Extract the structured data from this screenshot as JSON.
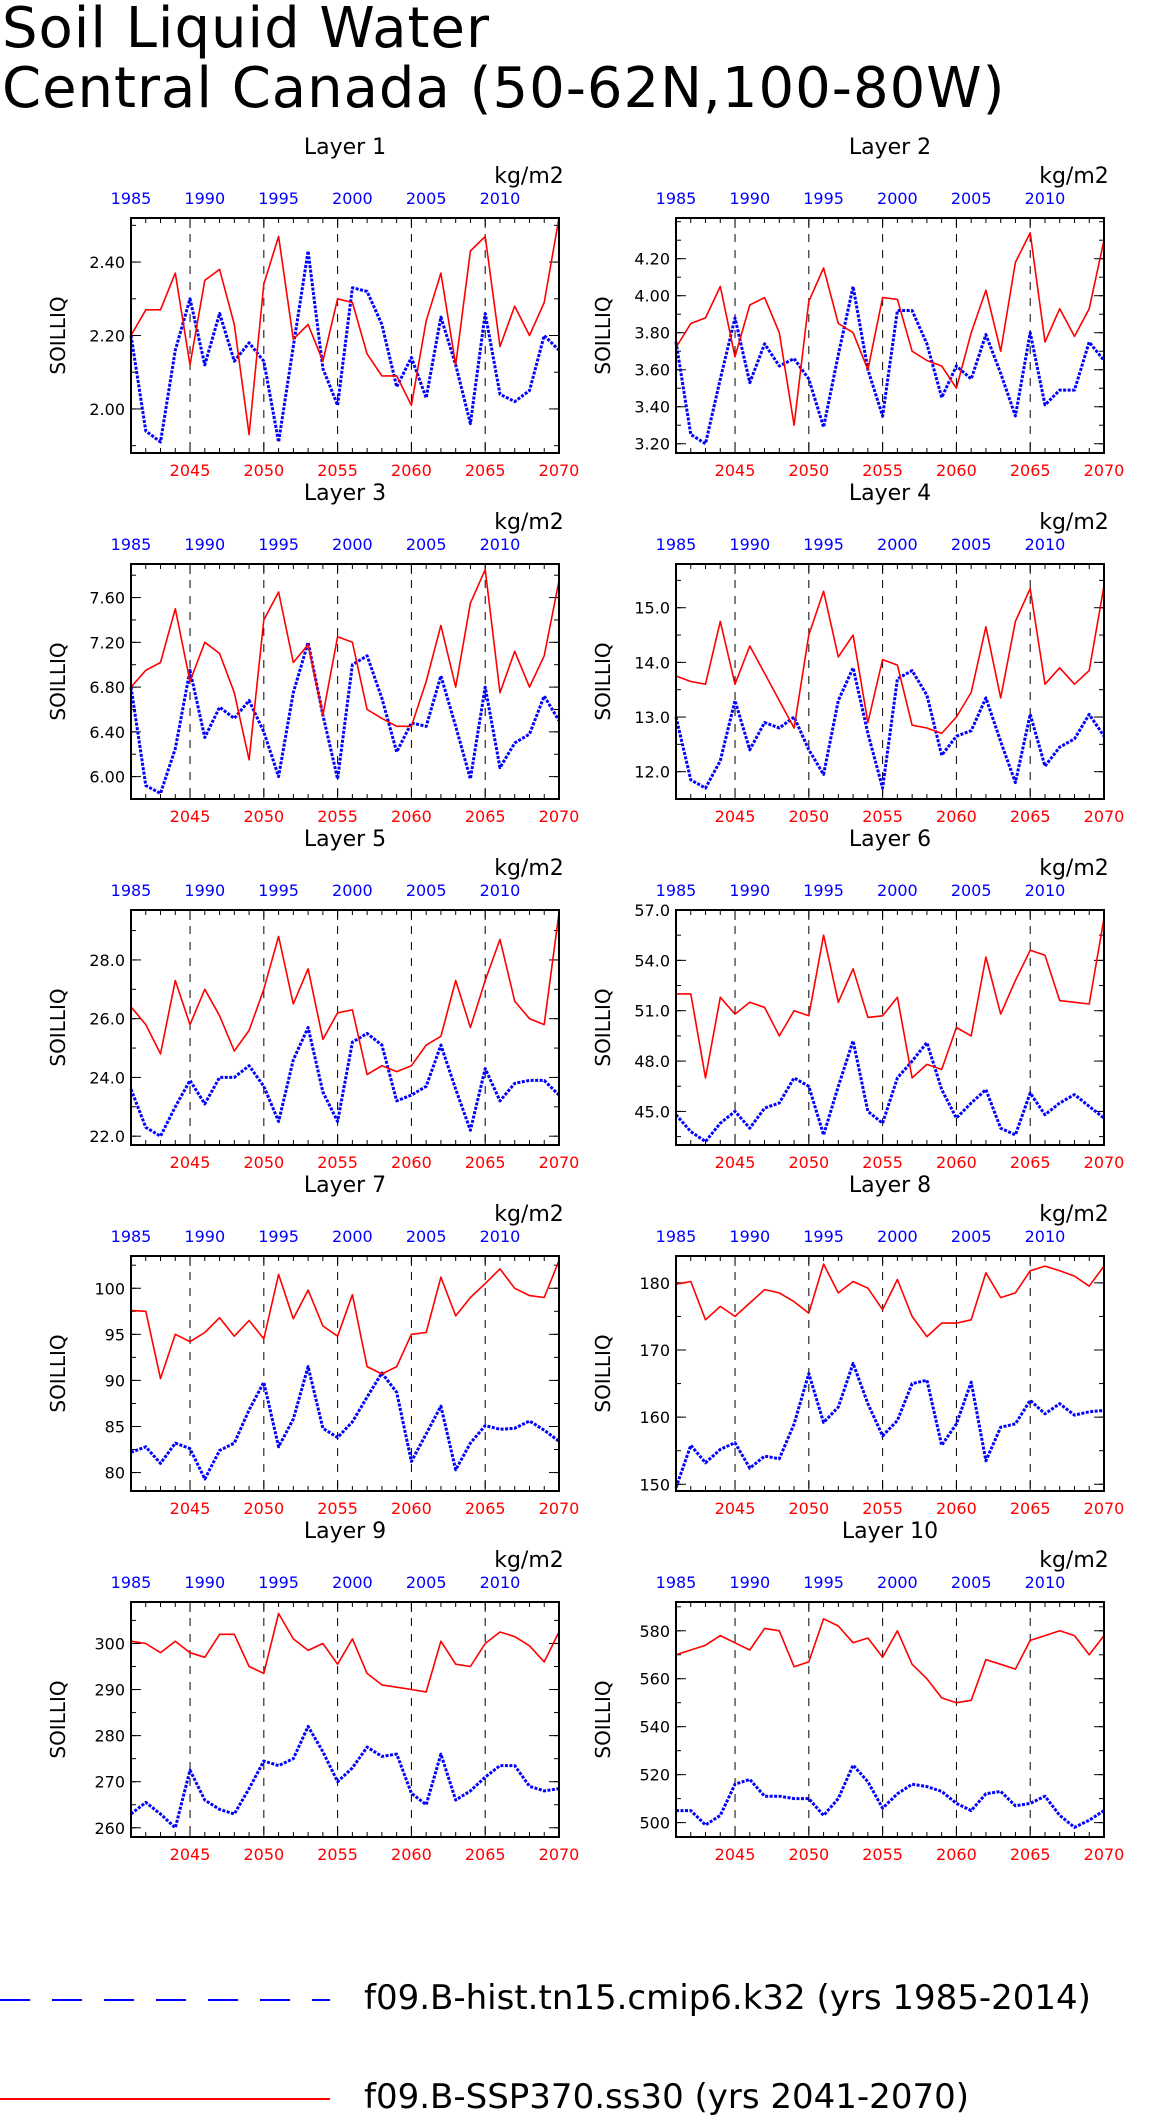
{
  "figure": {
    "title_line1": "Soil Liquid Water",
    "title_line2": "Central Canada (50-62N,100-80W)",
    "ylabel": "SOILLIQ",
    "units": "kg/m2",
    "top_axis_ticks": [
      "1985",
      "1990",
      "1995",
      "2000",
      "2005",
      "2010"
    ],
    "bottom_axis_ticks": [
      "2045",
      "2050",
      "2055",
      "2060",
      "2065",
      "2070"
    ],
    "colors": {
      "hist": "#0000ff",
      "ssp": "#ff0000",
      "top_axis_text": "#0000ff",
      "bottom_axis_text": "#ff0000"
    }
  },
  "legend": {
    "hist": "f09.B-hist.tn15.cmip6.k32 (yrs 1985-2014)",
    "ssp": "f09.B-SSP370.ss30 (yrs 2041-2070)"
  },
  "chart_data": [
    {
      "type": "line",
      "title": "Layer 1",
      "ylabel": "SOILLIQ",
      "ylim": [
        1.88,
        2.52
      ],
      "yticks": [
        "2.00",
        "2.20",
        "2.40"
      ],
      "ytick_values": [
        2.0,
        2.2,
        2.4
      ],
      "x_bottom": [
        2041,
        2070
      ],
      "x_top": [
        1985,
        2014
      ],
      "series": [
        {
          "name": "f09.B-hist.tn15.cmip6.k32 (yrs 1985-2014)",
          "values": [
            2.2,
            1.94,
            1.91,
            2.16,
            2.3,
            2.12,
            2.26,
            2.13,
            2.18,
            2.13,
            1.91,
            2.17,
            2.43,
            2.11,
            2.01,
            2.33,
            2.32,
            2.23,
            2.06,
            2.14,
            2.03,
            2.25,
            2.12,
            1.96,
            2.26,
            2.04,
            2.02,
            2.05,
            2.2,
            2.16
          ]
        },
        {
          "name": "f09.B-SSP370.ss30 (yrs 2041-2070)",
          "values": [
            2.2,
            2.27,
            2.27,
            2.37,
            2.12,
            2.35,
            2.38,
            2.23,
            1.93,
            2.34,
            2.47,
            2.19,
            2.23,
            2.13,
            2.3,
            2.29,
            2.15,
            2.09,
            2.09,
            2.01,
            2.24,
            2.37,
            2.12,
            2.43,
            2.47,
            2.17,
            2.28,
            2.2,
            2.29,
            2.52
          ]
        }
      ]
    },
    {
      "type": "line",
      "title": "Layer 2",
      "ylabel": "SOILLIQ",
      "ylim": [
        3.15,
        4.42
      ],
      "yticks": [
        "3.20",
        "3.40",
        "3.60",
        "3.80",
        "4.00",
        "4.20"
      ],
      "ytick_values": [
        3.2,
        3.4,
        3.6,
        3.8,
        4.0,
        4.2
      ],
      "x_bottom": [
        2041,
        2070
      ],
      "x_top": [
        1985,
        2014
      ],
      "series": [
        {
          "name": "f09.B-hist.tn15.cmip6.k32 (yrs 1985-2014)",
          "values": [
            3.75,
            3.25,
            3.2,
            3.55,
            3.88,
            3.53,
            3.74,
            3.62,
            3.66,
            3.55,
            3.29,
            3.68,
            4.05,
            3.6,
            3.35,
            3.92,
            3.92,
            3.74,
            3.45,
            3.62,
            3.55,
            3.79,
            3.58,
            3.35,
            3.8,
            3.41,
            3.49,
            3.49,
            3.75,
            3.65
          ]
        },
        {
          "name": "f09.B-SSP370.ss30 (yrs 2041-2070)",
          "values": [
            3.72,
            3.85,
            3.88,
            4.05,
            3.67,
            3.95,
            3.99,
            3.8,
            3.3,
            3.97,
            4.15,
            3.85,
            3.8,
            3.6,
            3.99,
            3.98,
            3.7,
            3.65,
            3.62,
            3.5,
            3.8,
            4.03,
            3.7,
            4.18,
            4.34,
            3.75,
            3.93,
            3.78,
            3.93,
            4.3
          ]
        }
      ]
    },
    {
      "type": "line",
      "title": "Layer 3",
      "ylabel": "SOILLIQ",
      "ylim": [
        5.8,
        7.9
      ],
      "yticks": [
        "6.00",
        "6.40",
        "6.80",
        "7.20",
        "7.60"
      ],
      "ytick_values": [
        6.0,
        6.4,
        6.8,
        7.2,
        7.6
      ],
      "x_bottom": [
        2041,
        2070
      ],
      "x_top": [
        1985,
        2014
      ],
      "series": [
        {
          "name": "f09.B-hist.tn15.cmip6.k32 (yrs 1985-2014)",
          "values": [
            6.8,
            5.92,
            5.85,
            6.25,
            6.95,
            6.35,
            6.62,
            6.52,
            6.68,
            6.4,
            6.0,
            6.75,
            7.2,
            6.55,
            5.98,
            7.0,
            7.08,
            6.7,
            6.22,
            6.48,
            6.45,
            6.9,
            6.45,
            5.98,
            6.8,
            6.08,
            6.3,
            6.38,
            6.72,
            6.5
          ]
        },
        {
          "name": "f09.B-SSP370.ss30 (yrs 2041-2070)",
          "values": [
            6.8,
            6.95,
            7.02,
            7.5,
            6.85,
            7.2,
            7.1,
            6.75,
            6.15,
            7.4,
            7.65,
            7.02,
            7.18,
            6.55,
            7.25,
            7.2,
            6.6,
            6.52,
            6.45,
            6.45,
            6.85,
            7.35,
            6.8,
            7.55,
            7.85,
            6.75,
            7.12,
            6.8,
            7.08,
            7.75
          ]
        }
      ]
    },
    {
      "type": "line",
      "title": "Layer 4",
      "ylabel": "SOILLIQ",
      "ylim": [
        11.5,
        15.8
      ],
      "yticks": [
        "12.0",
        "13.0",
        "14.0",
        "15.0"
      ],
      "ytick_values": [
        12,
        13,
        14,
        15
      ],
      "x_bottom": [
        2041,
        2070
      ],
      "x_top": [
        1985,
        2014
      ],
      "series": [
        {
          "name": "f09.B-hist.tn15.cmip6.k32 (yrs 1985-2014)",
          "values": [
            13.0,
            11.85,
            11.7,
            12.2,
            13.3,
            12.4,
            12.9,
            12.8,
            13.0,
            12.4,
            11.95,
            13.3,
            13.9,
            12.7,
            11.7,
            13.7,
            13.85,
            13.4,
            12.3,
            12.65,
            12.75,
            13.35,
            12.55,
            11.8,
            13.05,
            12.1,
            12.45,
            12.6,
            13.05,
            12.65
          ]
        },
        {
          "name": "f09.B-SSP370.ss30 (yrs 2041-2070)",
          "values": [
            13.75,
            13.65,
            13.6,
            14.75,
            13.6,
            14.3,
            13.8,
            13.3,
            12.8,
            14.5,
            15.3,
            14.1,
            14.5,
            12.9,
            14.05,
            13.95,
            12.85,
            12.8,
            12.7,
            13.0,
            13.45,
            14.65,
            13.35,
            14.75,
            15.35,
            13.6,
            13.9,
            13.6,
            13.85,
            15.4
          ]
        }
      ]
    },
    {
      "type": "line",
      "title": "Layer 5",
      "ylabel": "SOILLIQ",
      "ylim": [
        21.7,
        29.7
      ],
      "yticks": [
        "22.0",
        "24.0",
        "26.0",
        "28.0"
      ],
      "ytick_values": [
        22,
        24,
        26,
        28
      ],
      "x_bottom": [
        2041,
        2070
      ],
      "x_top": [
        1985,
        2014
      ],
      "series": [
        {
          "name": "f09.B-hist.tn15.cmip6.k32 (yrs 1985-2014)",
          "values": [
            23.6,
            22.3,
            22.0,
            23.0,
            23.9,
            23.1,
            24.0,
            24.0,
            24.4,
            23.7,
            22.5,
            24.6,
            25.7,
            23.5,
            22.5,
            25.2,
            25.5,
            25.1,
            23.2,
            23.4,
            23.7,
            25.1,
            23.6,
            22.2,
            24.3,
            23.2,
            23.8,
            23.9,
            23.9,
            23.4
          ]
        },
        {
          "name": "f09.B-SSP370.ss30 (yrs 2041-2070)",
          "values": [
            26.4,
            25.8,
            24.8,
            27.3,
            25.8,
            27.0,
            26.1,
            24.9,
            25.6,
            27.0,
            28.8,
            26.5,
            27.7,
            25.3,
            26.2,
            26.3,
            24.1,
            24.4,
            24.2,
            24.4,
            25.1,
            25.4,
            27.3,
            25.7,
            27.3,
            28.7,
            26.6,
            26.0,
            25.8,
            29.6
          ]
        }
      ]
    },
    {
      "type": "line",
      "title": "Layer 6",
      "ylabel": "SOILLIQ",
      "ylim": [
        43,
        57
      ],
      "yticks": [
        "45.0",
        "48.0",
        "51.0",
        "54.0",
        "57.0"
      ],
      "ytick_values": [
        45,
        48,
        51,
        54,
        57
      ],
      "x_bottom": [
        2041,
        2070
      ],
      "x_top": [
        1985,
        2014
      ],
      "series": [
        {
          "name": "f09.B-hist.tn15.cmip6.k32 (yrs 1985-2014)",
          "values": [
            44.8,
            43.8,
            43.2,
            44.3,
            45.0,
            44.0,
            45.2,
            45.5,
            47.0,
            46.5,
            43.6,
            46.5,
            49.2,
            45.0,
            44.3,
            47.0,
            48.0,
            49.1,
            46.3,
            44.6,
            45.5,
            46.3,
            44.0,
            43.6,
            46.1,
            44.8,
            45.5,
            46.0,
            45.3,
            44.6
          ]
        },
        {
          "name": "f09.B-SSP370.ss30 (yrs 2041-2070)",
          "values": [
            52.0,
            52.0,
            47.0,
            51.8,
            50.8,
            51.5,
            51.2,
            49.5,
            51.0,
            50.7,
            55.5,
            51.5,
            53.5,
            50.6,
            50.7,
            51.8,
            47.0,
            47.8,
            47.5,
            50.0,
            49.5,
            54.2,
            50.8,
            52.8,
            54.6,
            54.3,
            51.6,
            51.5,
            51.4,
            56.5
          ]
        }
      ]
    },
    {
      "type": "line",
      "title": "Layer 7",
      "ylabel": "SOILLIQ",
      "ylim": [
        78,
        103.5
      ],
      "yticks": [
        "80",
        "85",
        "90",
        "95",
        "100"
      ],
      "ytick_values": [
        80,
        85,
        90,
        95,
        100
      ],
      "x_bottom": [
        2041,
        2070
      ],
      "x_top": [
        1985,
        2014
      ],
      "series": [
        {
          "name": "f09.B-hist.tn15.cmip6.k32 (yrs 1985-2014)",
          "values": [
            82.2,
            82.8,
            81.0,
            83.2,
            82.6,
            79.3,
            82.4,
            83.2,
            86.8,
            89.8,
            82.8,
            85.8,
            91.5,
            84.8,
            83.8,
            85.5,
            88.2,
            90.8,
            88.7,
            81.2,
            84.2,
            87.2,
            80.3,
            83.2,
            85.1,
            84.7,
            84.8,
            85.6,
            84.6,
            83.4
          ]
        },
        {
          "name": "f09.B-SSP370.ss30 (yrs 2041-2070)",
          "values": [
            97.6,
            97.5,
            90.2,
            95.0,
            94.2,
            95.2,
            96.8,
            94.8,
            96.5,
            94.5,
            101.5,
            96.7,
            99.8,
            95.9,
            94.8,
            99.3,
            91.5,
            90.7,
            91.5,
            95.0,
            95.2,
            101.2,
            97.0,
            99.0,
            100.5,
            102.1,
            100.0,
            99.2,
            99.0,
            103.0
          ]
        }
      ]
    },
    {
      "type": "line",
      "title": "Layer 8",
      "ylabel": "SOILLIQ",
      "ylim": [
        149,
        184
      ],
      "yticks": [
        "150",
        "160",
        "170",
        "180"
      ],
      "ytick_values": [
        150,
        160,
        170,
        180
      ],
      "x_bottom": [
        2041,
        2070
      ],
      "x_top": [
        1985,
        2014
      ],
      "series": [
        {
          "name": "f09.B-hist.tn15.cmip6.k32 (yrs 1985-2014)",
          "values": [
            149.5,
            155.8,
            153.2,
            155.2,
            156.2,
            152.4,
            154.2,
            153.8,
            159.0,
            166.5,
            159.2,
            161.5,
            168.0,
            162.0,
            157.2,
            159.5,
            165.0,
            165.5,
            155.8,
            159.0,
            165.2,
            153.5,
            158.5,
            159.0,
            162.5,
            160.5,
            162.0,
            160.3,
            160.8,
            161.0
          ]
        },
        {
          "name": "f09.B-SSP370.ss30 (yrs 2041-2070)",
          "values": [
            179.8,
            180.2,
            174.5,
            176.5,
            175.0,
            177.0,
            179.0,
            178.5,
            177.2,
            175.5,
            182.8,
            178.5,
            180.2,
            179.2,
            176.0,
            180.5,
            175.0,
            172.0,
            174.0,
            174.0,
            174.5,
            181.5,
            177.8,
            178.5,
            181.8,
            182.5,
            181.8,
            181.0,
            179.5,
            182.5
          ]
        }
      ]
    },
    {
      "type": "line",
      "title": "Layer 9",
      "ylabel": "SOILLIQ",
      "ylim": [
        258,
        309
      ],
      "yticks": [
        "260",
        "270",
        "280",
        "290",
        "300"
      ],
      "ytick_values": [
        260,
        270,
        280,
        290,
        300
      ],
      "x_bottom": [
        2041,
        2070
      ],
      "x_top": [
        1985,
        2014
      ],
      "series": [
        {
          "name": "f09.B-hist.tn15.cmip6.k32 (yrs 1985-2014)",
          "values": [
            263.0,
            265.5,
            263.0,
            260.0,
            272.5,
            266.0,
            264.0,
            263.0,
            268.5,
            274.5,
            273.5,
            275.0,
            282.0,
            276.5,
            270.0,
            273.0,
            277.5,
            275.5,
            276.0,
            267.5,
            265.0,
            276.0,
            266.0,
            268.0,
            271.0,
            273.5,
            273.5,
            269.0,
            268.0,
            268.5
          ]
        },
        {
          "name": "f09.B-SSP370.ss30 (yrs 2041-2070)",
          "values": [
            300.5,
            300.0,
            298.0,
            300.5,
            298.0,
            297.0,
            302.0,
            302.0,
            295.0,
            293.5,
            306.5,
            301.0,
            298.5,
            300.0,
            295.5,
            301.0,
            293.5,
            291.0,
            290.5,
            290.0,
            289.5,
            300.5,
            295.5,
            295.0,
            300.0,
            302.5,
            301.5,
            299.5,
            296.0,
            302.5
          ]
        }
      ]
    },
    {
      "type": "line",
      "title": "Layer 10",
      "ylabel": "SOILLIQ",
      "ylim": [
        494,
        592
      ],
      "yticks": [
        "500",
        "520",
        "540",
        "560",
        "580"
      ],
      "ytick_values": [
        500,
        520,
        540,
        560,
        580
      ],
      "x_bottom": [
        2041,
        2070
      ],
      "x_top": [
        1985,
        2014
      ],
      "series": [
        {
          "name": "f09.B-hist.tn15.cmip6.k32 (yrs 1985-2014)",
          "values": [
            505,
            505,
            499,
            503,
            516,
            518,
            511,
            511,
            510,
            510,
            503,
            510,
            524,
            517,
            506,
            512,
            516,
            515,
            513,
            508,
            505,
            512,
            513,
            507,
            508,
            511,
            503,
            498,
            501,
            505
          ]
        },
        {
          "name": "f09.B-SSP370.ss30 (yrs 2041-2070)",
          "values": [
            570,
            572,
            574,
            578,
            575,
            572,
            581,
            580,
            565,
            567,
            585,
            582,
            575,
            577,
            569,
            580,
            566,
            560,
            552,
            550,
            551,
            568,
            566,
            564,
            576,
            578,
            580,
            578,
            570,
            578
          ]
        }
      ]
    }
  ]
}
